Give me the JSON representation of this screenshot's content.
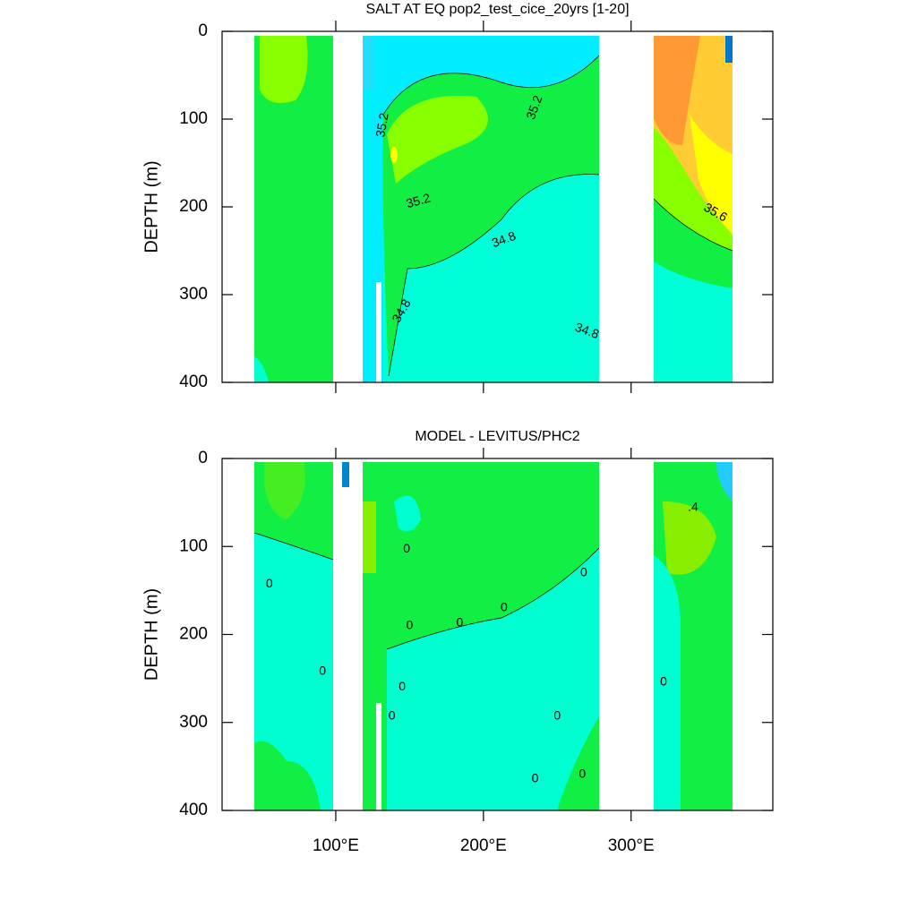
{
  "chart_data": [
    {
      "type": "contour",
      "title": "SALT AT EQ pop2_test_cice_20yrs [1-20]",
      "ylabel": "DEPTH (m)",
      "xlim": [
        23,
        396
      ],
      "xticks": [
        100,
        200,
        300
      ],
      "ylim": [
        0,
        400
      ],
      "yticks": [
        0,
        100,
        200,
        300,
        400
      ],
      "y_inverted": true,
      "annotations": [
        {
          "label": "35.2",
          "x": 132,
          "y": 107,
          "angle": -80
        },
        {
          "label": "35.2",
          "x": 235,
          "y": 87,
          "angle": -70
        },
        {
          "label": "35.2",
          "x": 156,
          "y": 194,
          "angle": -15
        },
        {
          "label": "34.8",
          "x": 214,
          "y": 238,
          "angle": -20
        },
        {
          "label": "34.8",
          "x": 145,
          "y": 319,
          "angle": -60
        },
        {
          "label": "34.8",
          "x": 270,
          "y": 342,
          "angle": 20
        },
        {
          "label": "35.6",
          "x": 357,
          "y": 207,
          "angle": 30
        }
      ]
    },
    {
      "type": "contour",
      "title": "MODEL - LEVITUS/PHC2",
      "ylabel": "DEPTH (m)",
      "xlim": [
        23,
        396
      ],
      "xticks": [
        {
          "value": 100,
          "label": "100°E"
        },
        {
          "value": 200,
          "label": "200°E"
        },
        {
          "value": 300,
          "label": "300°E"
        }
      ],
      "ylim": [
        0,
        400
      ],
      "yticks": [
        0,
        100,
        200,
        300,
        400
      ],
      "y_inverted": true,
      "annotations": [
        {
          "label": ".4",
          "x": 342,
          "y": 56,
          "angle": 0
        },
        {
          "label": "0",
          "x": 55,
          "y": 143,
          "angle": 0
        },
        {
          "label": "0",
          "x": 148,
          "y": 103,
          "angle": 0
        },
        {
          "label": "0",
          "x": 150,
          "y": 190,
          "angle": 0
        },
        {
          "label": "0",
          "x": 184,
          "y": 187,
          "angle": 0
        },
        {
          "label": "0",
          "x": 214,
          "y": 170,
          "angle": 0
        },
        {
          "label": "0",
          "x": 91,
          "y": 242,
          "angle": 0
        },
        {
          "label": "0",
          "x": 145,
          "y": 260,
          "angle": 0
        },
        {
          "label": "0",
          "x": 138,
          "y": 293,
          "angle": 0
        },
        {
          "label": "0",
          "x": 250,
          "y": 293,
          "angle": 0
        },
        {
          "label": "0",
          "x": 268,
          "y": 130,
          "angle": 0
        },
        {
          "label": "0",
          "x": 322,
          "y": 254,
          "angle": 0
        },
        {
          "label": "0",
          "x": 235,
          "y": 364,
          "angle": 0
        },
        {
          "label": "0",
          "x": 267,
          "y": 359,
          "angle": 0
        }
      ]
    }
  ]
}
